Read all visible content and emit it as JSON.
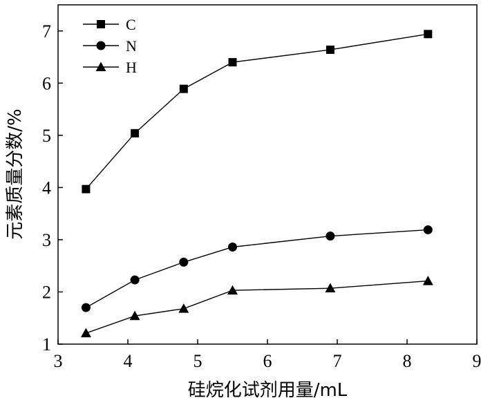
{
  "chart_data": {
    "type": "line",
    "title": "",
    "xlabel": "硅烷化试剂用量/mL",
    "ylabel": "元素质量分数/%",
    "xlim": [
      3,
      9
    ],
    "ylim": [
      1,
      7.5
    ],
    "xticks": [
      3,
      4,
      5,
      6,
      7,
      8,
      9
    ],
    "yticks": [
      1,
      2,
      3,
      4,
      5,
      6,
      7
    ],
    "grid": false,
    "legend_position": "top-left",
    "x": [
      3.4,
      4.1,
      4.8,
      5.5,
      6.9,
      8.3
    ],
    "series": [
      {
        "name": "C",
        "marker": "square",
        "values": [
          3.97,
          5.04,
          5.89,
          6.4,
          6.64,
          6.94
        ]
      },
      {
        "name": "N",
        "marker": "circle",
        "values": [
          1.7,
          2.23,
          2.57,
          2.86,
          3.07,
          3.19
        ]
      },
      {
        "name": "H",
        "marker": "triangle",
        "values": [
          1.21,
          1.54,
          1.68,
          2.03,
          2.07,
          2.21
        ]
      }
    ],
    "colors": {
      "line": "#000000",
      "marker": "#000000",
      "axis": "#000000"
    }
  }
}
